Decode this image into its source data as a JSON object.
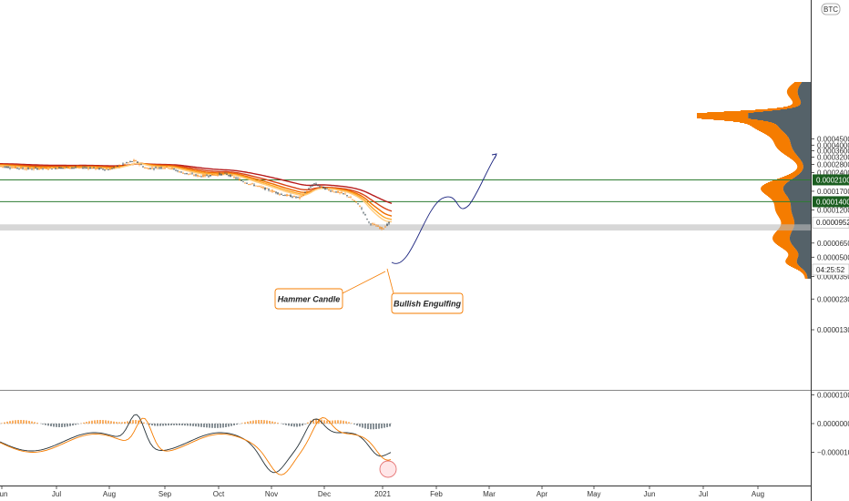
{
  "header": {
    "currency_badge": "BTC"
  },
  "chart_data": {
    "type": "candlestick",
    "price_axis": {
      "ticks": [
        "0.0000130",
        "0.0000230",
        "0.0000350",
        "0.0000500",
        "0.0000650",
        "0.0001200",
        "0.0001700",
        "0.0002400",
        "0.0002800",
        "0.0003200",
        "0.0003600",
        "0.0004000",
        "0.0004500"
      ],
      "scale": "log"
    },
    "x_axis": {
      "ticks": [
        "Jun",
        "Jul",
        "Aug",
        "Sep",
        "Oct",
        "Nov",
        "Dec",
        "2021",
        "Feb",
        "Mar",
        "Apr",
        "May",
        "Jun",
        "Jul",
        "Aug"
      ]
    },
    "price_labels": [
      {
        "name": "resistance-upper",
        "value": "0.0002100",
        "color": "#1b5e20"
      },
      {
        "name": "resistance-lower",
        "value": "0.0001400",
        "color": "#1b5e20"
      },
      {
        "name": "last-price",
        "value": "0.0000952",
        "color": "#ffffff"
      },
      {
        "name": "countdown",
        "value": "04:25:52",
        "color": "#ffffff"
      }
    ],
    "horizontal_levels": [
      0.00021,
      0.00014
    ],
    "support_zone": [
      8.2e-05,
      9.2e-05
    ],
    "annotations": [
      {
        "name": "hammer-candle",
        "text": "Hammer Candle"
      },
      {
        "name": "bullish-engulfing",
        "text": "Bullish Engulfing"
      }
    ],
    "macd_axis": {
      "ticks": [
        "0.0000100",
        "0.0000000",
        "−0.0000100"
      ]
    },
    "colors": {
      "bull": "#f57c00",
      "bear": "#37474f",
      "ribbon": [
        "#b71c1c",
        "#d84315",
        "#ef6c00",
        "#ffa726",
        "#ffcc80"
      ],
      "level": "#2e7d32",
      "projection": "#1a237e",
      "volume_profile_a": "#f57c00",
      "volume_profile_b": "#37474f"
    }
  }
}
